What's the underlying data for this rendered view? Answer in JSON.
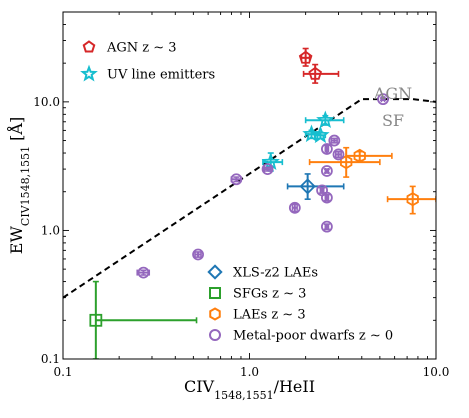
{
  "chart_data": {
    "type": "scatter",
    "xscale": "log",
    "yscale": "log",
    "xlim": [
      0.1,
      10.0
    ],
    "ylim": [
      0.1,
      50
    ],
    "xticks": [
      {
        "value": 0.1,
        "label": "0.1"
      },
      {
        "value": 1.0,
        "label": "1.0"
      },
      {
        "value": 10.0,
        "label": "10.0"
      }
    ],
    "yticks": [
      {
        "value": 0.1,
        "label": "0.1"
      },
      {
        "value": 1.0,
        "label": "1.0"
      },
      {
        "value": 10.0,
        "label": "10.0"
      }
    ],
    "xlabel": {
      "main": "CIV",
      "sub": "1548,1551",
      "tail": "/HeII"
    },
    "ylabel": {
      "main": "EW",
      "sub": "CIV1548,1551",
      "tail": " [Å]"
    },
    "region_labels": {
      "upper": "AGN",
      "lower": "SF"
    },
    "divider": {
      "style": "dashed",
      "points": [
        [
          0.1,
          0.3
        ],
        [
          4.0,
          10.5
        ],
        [
          7.5,
          10.5
        ],
        [
          10.0,
          10.0
        ]
      ]
    },
    "legend_top": [
      {
        "series": "agn",
        "label": "AGN z ∼ 3"
      },
      {
        "series": "uv",
        "label": "UV line emitters"
      }
    ],
    "legend_bottom": [
      {
        "series": "xls",
        "label": "XLS-z2 LAEs"
      },
      {
        "series": "sfg",
        "label": "SFGs z ∼ 3"
      },
      {
        "series": "lae",
        "label": "LAEs z ∼ 3"
      },
      {
        "series": "dwarf",
        "label": "Metal-poor dwarfs z ∼ 0"
      }
    ],
    "series": [
      {
        "id": "agn",
        "marker": "pentagon",
        "color": "#d62728",
        "points": [
          {
            "x": 2.0,
            "y": 22.0,
            "xerr": [
              0.1,
              0.1
            ],
            "yerr": [
              3.0,
              4.0
            ]
          },
          {
            "x": 2.25,
            "y": 16.5,
            "xerr": [
              0.3,
              0.75
            ],
            "yerr": [
              2.5,
              3.0
            ]
          }
        ]
      },
      {
        "id": "uv",
        "marker": "star",
        "color": "#17becf",
        "points": [
          {
            "x": 2.55,
            "y": 7.2,
            "xerr": [
              0.55,
              0.65
            ],
            "yerr": [
              0.6,
              0.6
            ]
          },
          {
            "x": 2.15,
            "y": 5.6,
            "xerr": [
              0.15,
              0.25
            ],
            "yerr": [
              0.4,
              0.4
            ]
          },
          {
            "x": 2.4,
            "y": 5.5,
            "xerr": [
              0.15,
              0.15
            ],
            "yerr": [
              0.3,
              0.3
            ]
          },
          {
            "x": 1.3,
            "y": 3.4,
            "xerr": [
              0.12,
              0.2
            ],
            "yerr": [
              0.5,
              0.6
            ]
          }
        ]
      },
      {
        "id": "xls",
        "marker": "diamond",
        "color": "#1f77b4",
        "points": [
          {
            "x": 2.05,
            "y": 2.2,
            "xerr": [
              0.45,
              1.15
            ],
            "yerr": [
              0.45,
              0.55
            ]
          }
        ]
      },
      {
        "id": "sfg",
        "marker": "square",
        "color": "#2ca02c",
        "points": [
          {
            "x": 0.15,
            "y": 0.2,
            "xerr": [
              0.0,
              0.37
            ],
            "yerr": [
              0.1,
              0.2
            ]
          }
        ]
      },
      {
        "id": "lae",
        "marker": "hexagon",
        "color": "#ff7f0e",
        "points": [
          {
            "x": 3.3,
            "y": 3.4,
            "xerr": [
              1.2,
              1.7
            ],
            "yerr": [
              0.8,
              1.0
            ]
          },
          {
            "x": 3.9,
            "y": 3.8,
            "xerr": [
              0.6,
              1.9
            ],
            "yerr": [
              0.3,
              0.3
            ]
          },
          {
            "x": 7.5,
            "y": 1.75,
            "xerr": [
              2.0,
              2.5
            ],
            "yerr": [
              0.4,
              0.45
            ]
          }
        ]
      },
      {
        "id": "dwarf",
        "marker": "circle",
        "color": "#9467bd",
        "points": [
          {
            "x": 5.2,
            "y": 10.5,
            "xerr": [
              0.1,
              0.1
            ],
            "yerr": [
              0.2,
              0.2
            ]
          },
          {
            "x": 2.6,
            "y": 4.3,
            "xerr": [
              0.05,
              0.05
            ],
            "yerr": [
              0.3,
              0.3
            ]
          },
          {
            "x": 2.85,
            "y": 5.0,
            "xerr": [
              0.1,
              0.1
            ],
            "yerr": [
              0.2,
              0.2
            ]
          },
          {
            "x": 3.0,
            "y": 3.9,
            "xerr": [
              0.1,
              0.1
            ],
            "yerr": [
              0.2,
              0.2
            ]
          },
          {
            "x": 1.25,
            "y": 3.0,
            "xerr": [
              0.05,
              0.05
            ],
            "yerr": [
              0.1,
              0.1
            ]
          },
          {
            "x": 0.85,
            "y": 2.5,
            "xerr": [
              0.05,
              0.05
            ],
            "yerr": [
              0.1,
              0.1
            ]
          },
          {
            "x": 2.6,
            "y": 2.9,
            "xerr": [
              0.05,
              0.05
            ],
            "yerr": [
              0.1,
              0.1
            ]
          },
          {
            "x": 1.75,
            "y": 1.5,
            "xerr": [
              0.05,
              0.05
            ],
            "yerr": [
              0.1,
              0.1
            ]
          },
          {
            "x": 2.45,
            "y": 2.05,
            "xerr": [
              0.05,
              0.05
            ],
            "yerr": [
              0.1,
              0.1
            ]
          },
          {
            "x": 2.6,
            "y": 1.8,
            "xerr": [
              0.05,
              0.05
            ],
            "yerr": [
              0.1,
              0.1
            ]
          },
          {
            "x": 2.6,
            "y": 1.07,
            "xerr": [
              0.05,
              0.05
            ],
            "yerr": [
              0.05,
              0.05
            ]
          },
          {
            "x": 0.53,
            "y": 0.65,
            "xerr": [
              0.02,
              0.02
            ],
            "yerr": [
              0.03,
              0.03
            ]
          },
          {
            "x": 0.27,
            "y": 0.47,
            "xerr": [
              0.02,
              0.02
            ],
            "yerr": [
              0.02,
              0.02
            ]
          }
        ]
      }
    ]
  }
}
